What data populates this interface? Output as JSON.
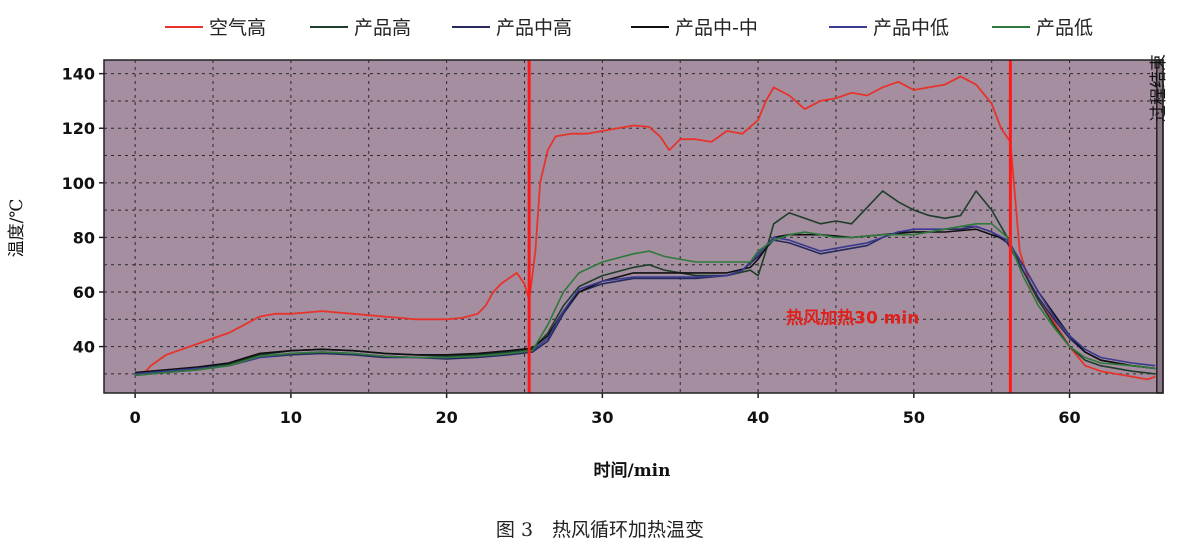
{
  "chart_data": {
    "type": "line",
    "caption": "图 3　热风循环加热温变",
    "xlabel": "时间/min",
    "ylabel": "温度/℃",
    "xlim": [
      -2,
      66
    ],
    "ylim": [
      23,
      145
    ],
    "x_ticks": [
      0,
      10,
      20,
      30,
      40,
      50,
      60
    ],
    "y_ticks": [
      40,
      60,
      80,
      100,
      120,
      140
    ],
    "grid": true,
    "legend_position": "top",
    "annotation": "热风加热30 min",
    "side_label": "过程结束",
    "vertical_markers": [
      25.3,
      56.2
    ],
    "colors": {
      "plot_bg": "#a48ea0",
      "marker": "#ff1a1a",
      "annotation": "#e0201a"
    },
    "series": [
      {
        "name": "空气高",
        "color": "#e8332a",
        "points": [
          [
            0,
            30
          ],
          [
            0.7,
            31
          ],
          [
            1,
            33
          ],
          [
            2,
            37
          ],
          [
            3,
            39
          ],
          [
            4,
            41
          ],
          [
            5,
            43
          ],
          [
            6,
            45
          ],
          [
            7,
            48
          ],
          [
            8,
            51
          ],
          [
            9,
            52
          ],
          [
            10,
            52
          ],
          [
            11,
            52.5
          ],
          [
            12,
            53
          ],
          [
            13,
            52.5
          ],
          [
            14,
            52
          ],
          [
            15,
            51.5
          ],
          [
            16,
            51
          ],
          [
            17,
            50.5
          ],
          [
            18,
            50
          ],
          [
            19,
            50
          ],
          [
            20,
            50
          ],
          [
            21,
            50.5
          ],
          [
            22,
            52
          ],
          [
            22.5,
            55
          ],
          [
            23,
            60
          ],
          [
            23.5,
            63
          ],
          [
            24,
            65
          ],
          [
            24.5,
            67
          ],
          [
            25,
            63
          ],
          [
            25.3,
            57
          ],
          [
            25.7,
            75
          ],
          [
            26,
            100
          ],
          [
            26.5,
            112
          ],
          [
            27,
            117
          ],
          [
            28,
            118
          ],
          [
            29,
            118
          ],
          [
            30,
            119
          ],
          [
            31,
            120
          ],
          [
            32,
            121
          ],
          [
            33,
            120.5
          ],
          [
            33.7,
            117
          ],
          [
            34.3,
            112
          ],
          [
            35,
            116
          ],
          [
            36,
            116
          ],
          [
            37,
            115
          ],
          [
            38,
            119
          ],
          [
            39,
            118
          ],
          [
            40,
            123
          ],
          [
            40.5,
            130
          ],
          [
            41,
            135
          ],
          [
            42,
            132
          ],
          [
            43,
            127
          ],
          [
            44,
            130
          ],
          [
            45,
            131
          ],
          [
            46,
            133
          ],
          [
            47,
            132
          ],
          [
            48,
            135
          ],
          [
            49,
            137
          ],
          [
            50,
            134
          ],
          [
            51,
            135
          ],
          [
            52,
            136
          ],
          [
            53,
            139
          ],
          [
            54,
            136
          ],
          [
            55,
            129
          ],
          [
            55.6,
            120
          ],
          [
            56.2,
            115
          ],
          [
            56.8,
            75
          ],
          [
            57.5,
            62
          ],
          [
            58,
            57
          ],
          [
            59,
            49
          ],
          [
            60,
            40
          ],
          [
            61,
            33
          ],
          [
            62,
            31
          ],
          [
            63,
            30
          ],
          [
            64,
            29
          ],
          [
            65,
            28
          ],
          [
            65.5,
            29
          ]
        ]
      },
      {
        "name": "产品高",
        "color": "#1e3e2a",
        "points": [
          [
            0,
            30
          ],
          [
            2,
            31
          ],
          [
            4,
            32
          ],
          [
            6,
            33.5
          ],
          [
            8,
            37
          ],
          [
            10,
            38.5
          ],
          [
            12,
            39
          ],
          [
            14,
            38.5
          ],
          [
            16,
            37.5
          ],
          [
            18,
            37
          ],
          [
            20,
            36.5
          ],
          [
            22,
            37
          ],
          [
            24,
            38
          ],
          [
            25.5,
            39
          ],
          [
            26.5,
            45
          ],
          [
            27.5,
            55
          ],
          [
            28.5,
            62
          ],
          [
            30,
            66
          ],
          [
            32,
            69
          ],
          [
            33,
            70
          ],
          [
            34,
            68
          ],
          [
            36,
            66
          ],
          [
            38,
            66
          ],
          [
            39.5,
            68
          ],
          [
            40,
            66
          ],
          [
            40.5,
            75
          ],
          [
            41,
            85
          ],
          [
            42,
            89
          ],
          [
            43,
            87
          ],
          [
            44,
            85
          ],
          [
            45,
            86
          ],
          [
            46,
            85
          ],
          [
            47,
            91
          ],
          [
            48,
            97
          ],
          [
            49,
            93
          ],
          [
            50,
            90
          ],
          [
            51,
            88
          ],
          [
            52,
            87
          ],
          [
            53,
            88
          ],
          [
            54,
            97
          ],
          [
            55,
            90
          ],
          [
            56,
            80
          ],
          [
            57,
            68
          ],
          [
            58,
            57
          ],
          [
            59,
            48
          ],
          [
            60,
            40
          ],
          [
            61,
            35
          ],
          [
            62,
            33
          ],
          [
            64,
            31
          ],
          [
            65.5,
            30
          ]
        ]
      },
      {
        "name": "产品中高",
        "color": "#262a5e",
        "points": [
          [
            0,
            29.5
          ],
          [
            2,
            30.5
          ],
          [
            4,
            31.5
          ],
          [
            6,
            33
          ],
          [
            8,
            36
          ],
          [
            10,
            37
          ],
          [
            12,
            37.5
          ],
          [
            14,
            37
          ],
          [
            16,
            36
          ],
          [
            18,
            36
          ],
          [
            20,
            35.5
          ],
          [
            22,
            36
          ],
          [
            24,
            37
          ],
          [
            25.5,
            38
          ],
          [
            26.5,
            42
          ],
          [
            27.5,
            52
          ],
          [
            28.5,
            60
          ],
          [
            30,
            63
          ],
          [
            32,
            65
          ],
          [
            34,
            65
          ],
          [
            36,
            65
          ],
          [
            38,
            66
          ],
          [
            39,
            68
          ],
          [
            40,
            73
          ],
          [
            41,
            79
          ],
          [
            42,
            78
          ],
          [
            43,
            76
          ],
          [
            44,
            74
          ],
          [
            45,
            75
          ],
          [
            46,
            76
          ],
          [
            47,
            77
          ],
          [
            48,
            80
          ],
          [
            49,
            82
          ],
          [
            50,
            82
          ],
          [
            51,
            82
          ],
          [
            52,
            83
          ],
          [
            53,
            83
          ],
          [
            54,
            84
          ],
          [
            55,
            82
          ],
          [
            56,
            78
          ],
          [
            57,
            68
          ],
          [
            58,
            58
          ],
          [
            59,
            50
          ],
          [
            60,
            43
          ],
          [
            61,
            38
          ],
          [
            62,
            35
          ],
          [
            64,
            33
          ],
          [
            65.5,
            32
          ]
        ]
      },
      {
        "name": "产品中-中",
        "color": "#101010",
        "points": [
          [
            0,
            30.5
          ],
          [
            2,
            31.5
          ],
          [
            4,
            32.5
          ],
          [
            6,
            34
          ],
          [
            8,
            37.5
          ],
          [
            10,
            38.5
          ],
          [
            12,
            39
          ],
          [
            14,
            38.5
          ],
          [
            16,
            37.5
          ],
          [
            18,
            37
          ],
          [
            20,
            37
          ],
          [
            22,
            37.5
          ],
          [
            24,
            38.5
          ],
          [
            25.5,
            39.5
          ],
          [
            26.5,
            44
          ],
          [
            27.5,
            53
          ],
          [
            28.5,
            60
          ],
          [
            30,
            64
          ],
          [
            32,
            67
          ],
          [
            34,
            67
          ],
          [
            36,
            67
          ],
          [
            38,
            67
          ],
          [
            39.5,
            69
          ],
          [
            40,
            72
          ],
          [
            41,
            80
          ],
          [
            42,
            81
          ],
          [
            44,
            81
          ],
          [
            46,
            80
          ],
          [
            48,
            81
          ],
          [
            50,
            82
          ],
          [
            52,
            82
          ],
          [
            54,
            83
          ],
          [
            55,
            81
          ],
          [
            56,
            79
          ],
          [
            57,
            70
          ],
          [
            58,
            60
          ],
          [
            59,
            52
          ],
          [
            60,
            44
          ],
          [
            61,
            38
          ],
          [
            62,
            35
          ],
          [
            64,
            33
          ],
          [
            65.5,
            32
          ]
        ]
      },
      {
        "name": "产品中低",
        "color": "#3a3a90",
        "points": [
          [
            0,
            30
          ],
          [
            2,
            31
          ],
          [
            4,
            32
          ],
          [
            6,
            33
          ],
          [
            8,
            36
          ],
          [
            10,
            37.5
          ],
          [
            12,
            38
          ],
          [
            14,
            37.5
          ],
          [
            16,
            36.5
          ],
          [
            18,
            36
          ],
          [
            20,
            36
          ],
          [
            22,
            36.5
          ],
          [
            24,
            37.5
          ],
          [
            25.5,
            38.5
          ],
          [
            26.5,
            43
          ],
          [
            27.5,
            53
          ],
          [
            28.5,
            61
          ],
          [
            30,
            64
          ],
          [
            32,
            65.5
          ],
          [
            34,
            65.5
          ],
          [
            36,
            65.5
          ],
          [
            38,
            66
          ],
          [
            39,
            68
          ],
          [
            40,
            74
          ],
          [
            41,
            80
          ],
          [
            42,
            79
          ],
          [
            43,
            77
          ],
          [
            44,
            75
          ],
          [
            45,
            76
          ],
          [
            46,
            77
          ],
          [
            47,
            78
          ],
          [
            48,
            80
          ],
          [
            49,
            82
          ],
          [
            50,
            83
          ],
          [
            51,
            83
          ],
          [
            52,
            83
          ],
          [
            53,
            84
          ],
          [
            54,
            84
          ],
          [
            55,
            82
          ],
          [
            56,
            79
          ],
          [
            57,
            70
          ],
          [
            58,
            60
          ],
          [
            59,
            51
          ],
          [
            60,
            44
          ],
          [
            61,
            39
          ],
          [
            62,
            36
          ],
          [
            64,
            34
          ],
          [
            65.5,
            33
          ]
        ]
      },
      {
        "name": "产品低",
        "color": "#2e7a3a",
        "points": [
          [
            0,
            29.5
          ],
          [
            2,
            30.5
          ],
          [
            4,
            31.5
          ],
          [
            6,
            33
          ],
          [
            8,
            36.5
          ],
          [
            10,
            37.5
          ],
          [
            12,
            38
          ],
          [
            14,
            37.5
          ],
          [
            16,
            36.5
          ],
          [
            18,
            36
          ],
          [
            20,
            36
          ],
          [
            22,
            36.5
          ],
          [
            24,
            37.5
          ],
          [
            25.5,
            38.5
          ],
          [
            26.5,
            48
          ],
          [
            27.5,
            60
          ],
          [
            28.5,
            67
          ],
          [
            30,
            71
          ],
          [
            32,
            74
          ],
          [
            33,
            75
          ],
          [
            34,
            73
          ],
          [
            36,
            71
          ],
          [
            38,
            71
          ],
          [
            39.5,
            71
          ],
          [
            40,
            75
          ],
          [
            41,
            79
          ],
          [
            42,
            81
          ],
          [
            43,
            82
          ],
          [
            44,
            81
          ],
          [
            45,
            80
          ],
          [
            46,
            80
          ],
          [
            48,
            81
          ],
          [
            50,
            81
          ],
          [
            52,
            83
          ],
          [
            54,
            85
          ],
          [
            55,
            85
          ],
          [
            56,
            80
          ],
          [
            57,
            66
          ],
          [
            58,
            55
          ],
          [
            59,
            47
          ],
          [
            60,
            40
          ],
          [
            61,
            36
          ],
          [
            62,
            34
          ],
          [
            64,
            33
          ],
          [
            65.5,
            32
          ]
        ]
      }
    ]
  }
}
